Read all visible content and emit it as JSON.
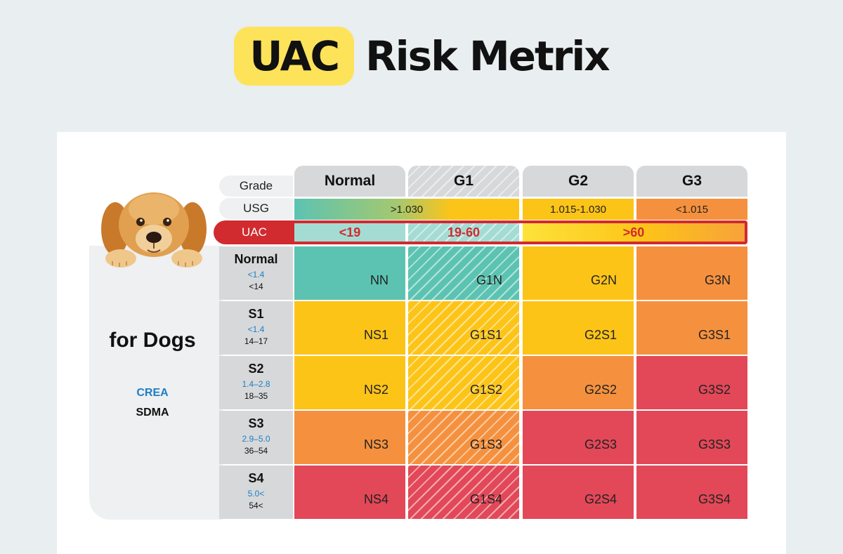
{
  "title": {
    "highlight": "UAC",
    "rest": "Risk Metrix"
  },
  "header_labels": {
    "grade": "Grade",
    "usg": "USG",
    "uac": "UAC"
  },
  "grades": [
    "Normal",
    "G1",
    "G2",
    "G3"
  ],
  "usg": {
    "normal_g1": ">1.030",
    "g2": "1.015-1.030",
    "g3": "<1.015"
  },
  "uac": {
    "normal": "<19",
    "g1": "19-60",
    "g2_g3": ">60"
  },
  "left_panel": {
    "title": "for Dogs",
    "crea": "CREA",
    "sdma": "SDMA"
  },
  "stages": [
    {
      "name": "Normal",
      "crea": "<1.4",
      "sdma": "<14"
    },
    {
      "name": "S1",
      "crea": "<1.4",
      "sdma": "14–17"
    },
    {
      "name": "S2",
      "crea": "1.4–2.8",
      "sdma": "18–35"
    },
    {
      "name": "S3",
      "crea": "2.9–5.0",
      "sdma": "36–54"
    },
    {
      "name": "S4",
      "crea": "5.0<",
      "sdma": "54<"
    }
  ],
  "matrix": [
    [
      "NN",
      "G1N",
      "G2N",
      "G3N"
    ],
    [
      "NS1",
      "G1S1",
      "G2S1",
      "G3S1"
    ],
    [
      "NS2",
      "G1S2",
      "G2S2",
      "G3S2"
    ],
    [
      "NS3",
      "G1S3",
      "G2S3",
      "G3S3"
    ],
    [
      "NS4",
      "G1S4",
      "G2S4",
      "G3S4"
    ]
  ],
  "colors": {
    "teal": "#5cc3b2",
    "yellow": "#fdc418",
    "orange": "#f5913e",
    "red": "#e24858",
    "uac_red": "#d12a2f",
    "title_yellow": "#fde35a"
  }
}
